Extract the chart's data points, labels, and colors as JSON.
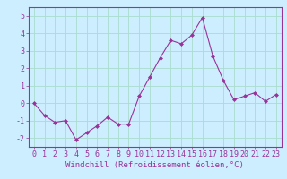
{
  "x": [
    0,
    1,
    2,
    3,
    4,
    5,
    6,
    7,
    8,
    9,
    10,
    11,
    12,
    13,
    14,
    15,
    16,
    17,
    18,
    19,
    20,
    21,
    22,
    23
  ],
  "y": [
    0,
    -0.7,
    -1.1,
    -1.0,
    -2.1,
    -1.7,
    -1.3,
    -0.8,
    -1.2,
    -1.2,
    0.4,
    1.5,
    2.6,
    3.6,
    3.4,
    3.9,
    4.9,
    2.7,
    1.3,
    0.2,
    0.4,
    0.6,
    0.1,
    0.5
  ],
  "line_color": "#993399",
  "marker": "D",
  "marker_size": 2.0,
  "line_width": 0.8,
  "bg_color": "#cceeff",
  "grid_color": "#aaddcc",
  "xlabel": "Windchill (Refroidissement éolien,°C)",
  "xlabel_fontsize": 6.5,
  "ylim": [
    -2.5,
    5.5
  ],
  "xlim": [
    -0.5,
    23.5
  ],
  "yticks": [
    -2,
    -1,
    0,
    1,
    2,
    3,
    4,
    5
  ],
  "xticks": [
    0,
    1,
    2,
    3,
    4,
    5,
    6,
    7,
    8,
    9,
    10,
    11,
    12,
    13,
    14,
    15,
    16,
    17,
    18,
    19,
    20,
    21,
    22,
    23
  ],
  "tick_fontsize": 6.0,
  "tick_color": "#993399",
  "axis_color": "#993399"
}
